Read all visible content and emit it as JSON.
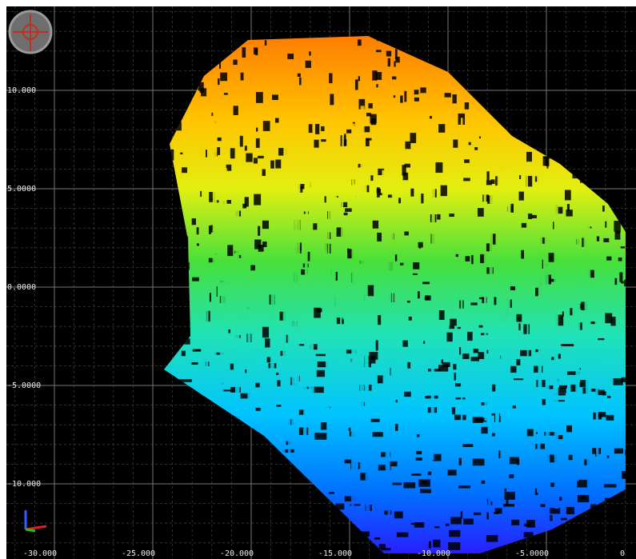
{
  "viewport": {
    "y_axis_labels": [
      "10.000",
      "5.0000",
      "0.0000",
      "-5.0000",
      "-10.000"
    ],
    "x_axis_labels": [
      "-30.000",
      "-25.000",
      "-20.000",
      "-15.000",
      "-10.000",
      "-5.0000",
      "0"
    ]
  }
}
